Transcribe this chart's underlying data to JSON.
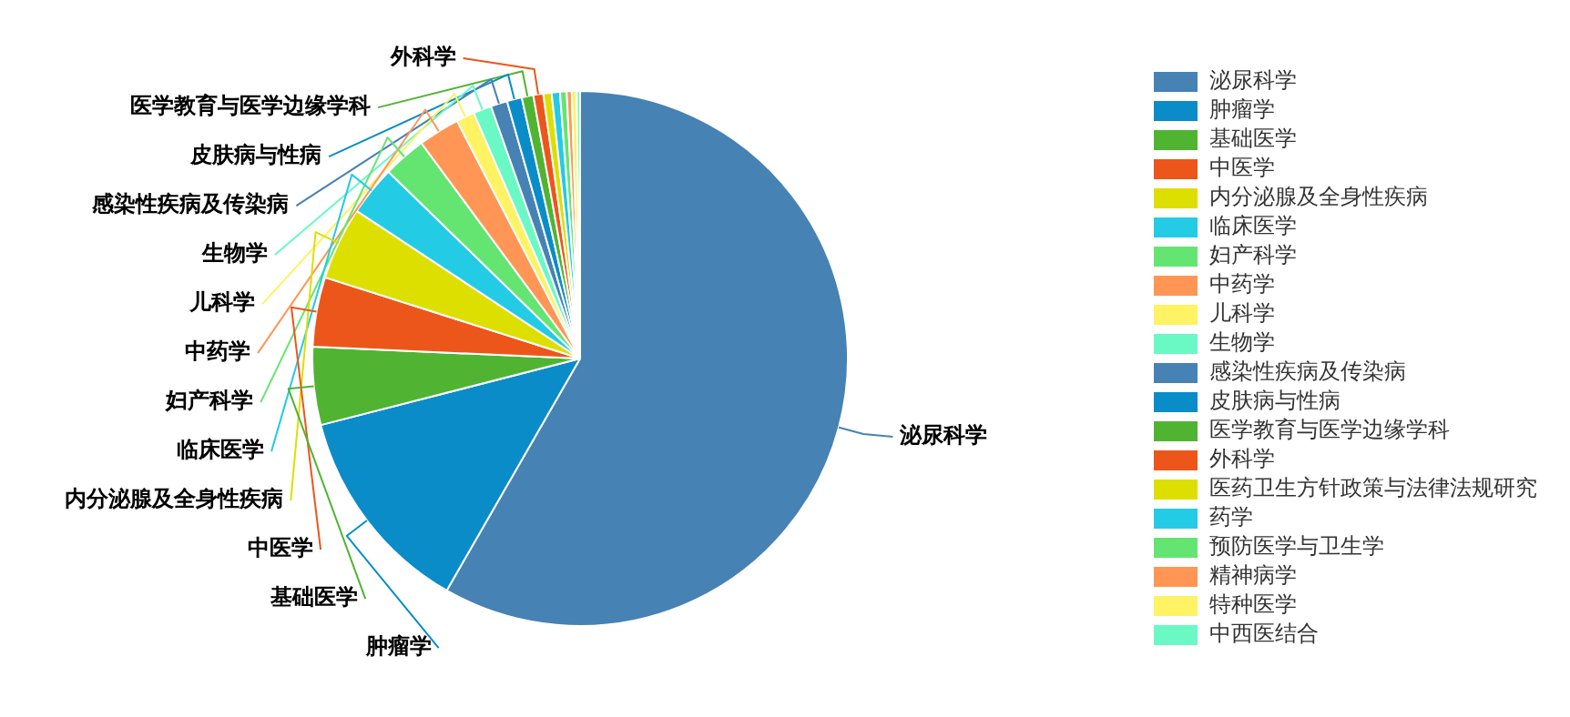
{
  "chart_data": {
    "type": "pie",
    "categories": [
      "泌尿科学",
      "肿瘤学",
      "基础医学",
      "中医学",
      "内分泌腺及全身性疾病",
      "临床医学",
      "妇产科学",
      "中药学",
      "儿科学",
      "生物学",
      "感染性疾病及传染病",
      "皮肤病与性病",
      "医学教育与医学边缘学科",
      "外科学",
      "医药卫生方针政策与法律法规研究",
      "药学",
      "预防医学与卫生学",
      "精神病学",
      "特种医学",
      "中西医结合"
    ],
    "values": [
      58.3,
      12.7,
      4.7,
      4.2,
      4.4,
      3.0,
      2.6,
      2.5,
      1.1,
      1.1,
      1.0,
      0.9,
      0.7,
      0.6,
      0.5,
      0.5,
      0.4,
      0.3,
      0.3,
      0.2
    ],
    "colors": [
      "#4682b4",
      "#0a8cc8",
      "#50b432",
      "#ed561b",
      "#dddf00",
      "#24cbe5",
      "#64e572",
      "#ff9655",
      "#fff263",
      "#6af9c4",
      "#4682b4",
      "#0a8cc8",
      "#50b432",
      "#ed561b",
      "#dddf00",
      "#24cbe5",
      "#64e572",
      "#ff9655",
      "#fff263",
      "#6af9c4"
    ],
    "legend": "right"
  }
}
